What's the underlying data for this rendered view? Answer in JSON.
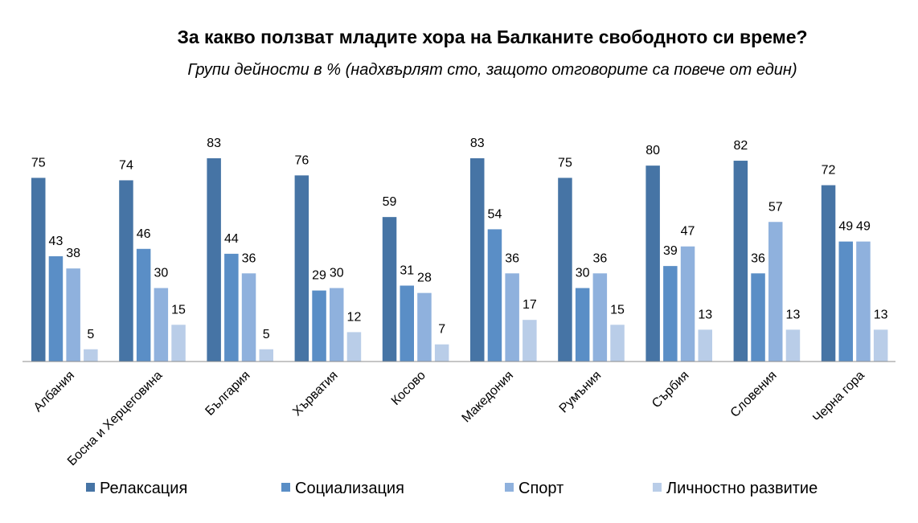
{
  "chart_data": {
    "type": "bar",
    "title": "За какво ползват младите хора на Балканите свободното си време?",
    "subtitle": "Групи дейности в % (надхвърлят сто, защото отговорите са повече от един)",
    "categories": [
      "Албания",
      "Босна и Херцеговина",
      "България",
      "Хърватия",
      "Косово",
      "Македония",
      "Румъния",
      "Сърбия",
      "Словения",
      "Черна гора"
    ],
    "series": [
      {
        "name": "Релаксация",
        "color": "#4674A5",
        "values": [
          75,
          74,
          83,
          76,
          59,
          83,
          75,
          80,
          82,
          72
        ]
      },
      {
        "name": "Социализация",
        "color": "#5A8EC6",
        "values": [
          43,
          46,
          44,
          29,
          31,
          54,
          30,
          39,
          36,
          49
        ]
      },
      {
        "name": "Спорт",
        "color": "#8FB1DD",
        "values": [
          38,
          30,
          36,
          30,
          28,
          36,
          36,
          47,
          57,
          49
        ]
      },
      {
        "name": "Личностно развитие",
        "color": "#B9CDE8",
        "values": [
          5,
          15,
          5,
          12,
          7,
          17,
          15,
          13,
          13,
          13
        ]
      }
    ],
    "ylim": [
      0,
      83
    ],
    "grid": false,
    "legend": "bottom",
    "xlabel": "",
    "ylabel": ""
  }
}
